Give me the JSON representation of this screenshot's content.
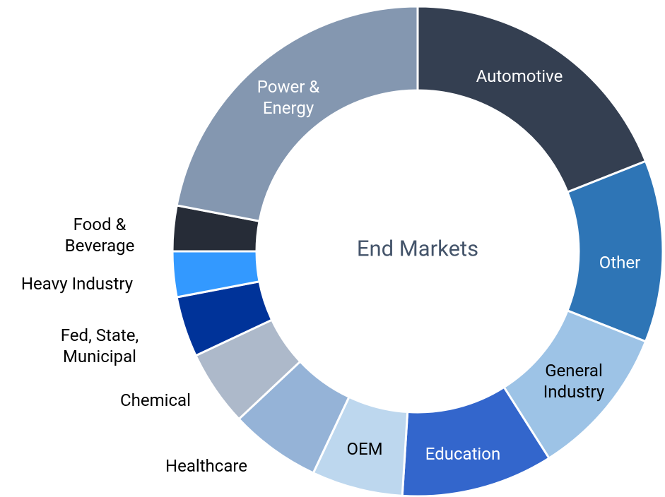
{
  "chart_data": {
    "type": "donut",
    "title": "End Markets",
    "categories": [
      "Automotive",
      "Other",
      "General Industry",
      "Education",
      "OEM",
      "Healthcare",
      "Chemical",
      "Fed, State, Municipal",
      "Heavy Industry",
      "Food & Beverage",
      "Power & Energy"
    ],
    "values": [
      19,
      12,
      10,
      10,
      6,
      6,
      5,
      4,
      3,
      3,
      22
    ],
    "colors": [
      "#343f51",
      "#2e75b6",
      "#9dc3e6",
      "#3366cc",
      "#bdd7ee",
      "#95b3d7",
      "#adb9ca",
      "#003399",
      "#3399ff",
      "#262c37",
      "#8497b0"
    ]
  }
}
